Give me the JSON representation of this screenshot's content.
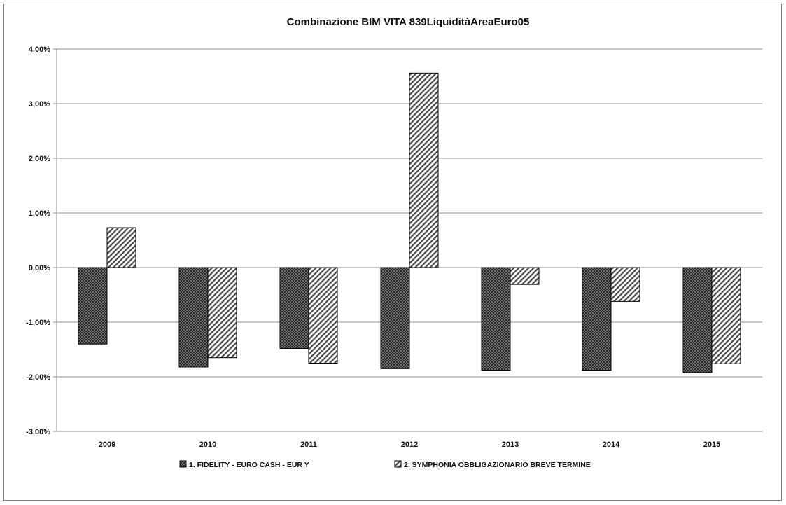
{
  "chart_data": {
    "type": "bar",
    "title": "Combinazione BIM VITA 839LiquiditàAreaEuro05",
    "xlabel": "",
    "ylabel": "",
    "categories": [
      "2009",
      "2010",
      "2011",
      "2012",
      "2013",
      "2014",
      "2015"
    ],
    "series": [
      {
        "name": "1. FIDELITY - EURO CASH - EUR Y",
        "pattern": "dots",
        "color": "#1a1a1a",
        "values": [
          -1.4,
          -1.82,
          -1.48,
          -1.85,
          -1.88,
          -1.88,
          -1.92
        ]
      },
      {
        "name": "2. SYMPHONIA OBBLIGAZIONARIO BREVE TERMINE",
        "pattern": "diagonal-hatch",
        "color": "#555555",
        "values": [
          0.73,
          -1.65,
          -1.75,
          3.56,
          -0.31,
          -0.62,
          -1.76
        ]
      }
    ],
    "ylim": [
      -3,
      4
    ],
    "yticks": [
      "-3,00%",
      "-2,00%",
      "-1,00%",
      "0,00%",
      "1,00%",
      "2,00%",
      "3,00%",
      "4,00%"
    ],
    "grid": true,
    "legend_position": "bottom"
  }
}
